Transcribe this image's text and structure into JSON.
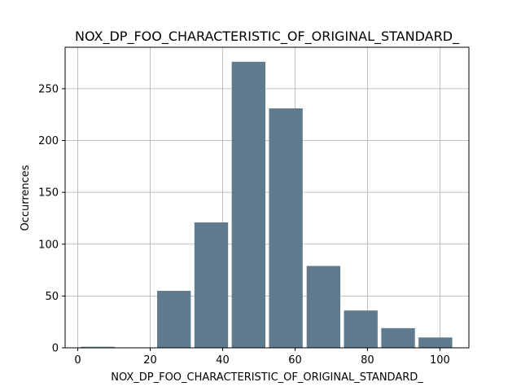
{
  "chart_data": {
    "type": "bar",
    "title": "NOX_DP_FOO_CHARACTERISTIC_OF_ORIGINAL_STANDARD_",
    "xlabel": "NOX_DP_FOO_CHARACTERISTIC_OF_ORIGINAL_STANDARD_",
    "ylabel": "Occurrences",
    "xlim": [
      -3.5,
      108
    ],
    "ylim": [
      0,
      290
    ],
    "xticks": [
      0,
      20,
      40,
      60,
      80,
      100
    ],
    "yticks": [
      0,
      50,
      100,
      150,
      200,
      250
    ],
    "grid": true,
    "bar_color": "#607b8e",
    "bins": [
      {
        "start": 0.8,
        "end": 10.2,
        "value": 1
      },
      {
        "start": 11.1,
        "end": 20.4,
        "value": 0
      },
      {
        "start": 21.9,
        "end": 31.2,
        "value": 55
      },
      {
        "start": 32.2,
        "end": 41.5,
        "value": 121
      },
      {
        "start": 42.5,
        "end": 51.8,
        "value": 276
      },
      {
        "start": 52.8,
        "end": 62.1,
        "value": 231
      },
      {
        "start": 63.2,
        "end": 72.5,
        "value": 79
      },
      {
        "start": 73.5,
        "end": 82.8,
        "value": 36
      },
      {
        "start": 83.8,
        "end": 93.1,
        "value": 19
      },
      {
        "start": 94.1,
        "end": 103.4,
        "value": 10
      }
    ]
  }
}
